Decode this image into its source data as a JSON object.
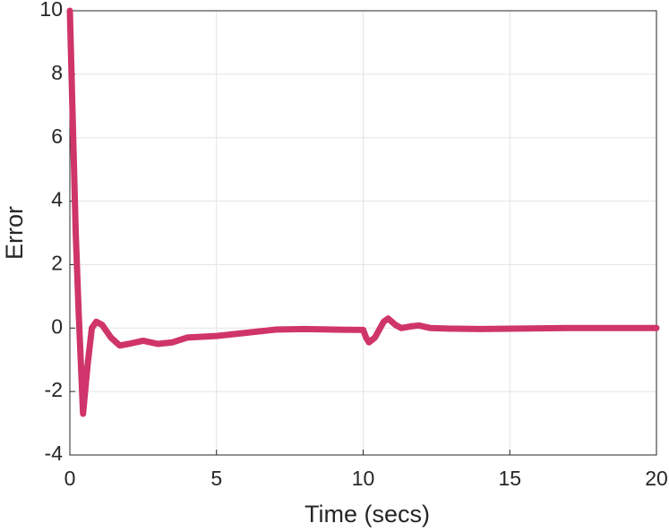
{
  "chart_data": {
    "type": "line",
    "xlabel": "Time (secs)",
    "ylabel": "Error",
    "x": [
      0,
      0.1,
      0.2,
      0.3,
      0.45,
      0.6,
      0.75,
      0.9,
      1.1,
      1.4,
      1.7,
      2.0,
      2.5,
      3.0,
      3.5,
      4.0,
      5.0,
      6.0,
      7.0,
      8.0,
      9.0,
      10.0,
      10.1,
      10.2,
      10.4,
      10.7,
      10.85,
      11.1,
      11.3,
      11.6,
      11.9,
      12.3,
      13.0,
      14.0,
      15.0,
      17.0,
      20.0
    ],
    "series": [
      {
        "color": "#cf356a",
        "values": [
          10,
          6.5,
          3,
          0.5,
          -2.7,
          -1.2,
          0.0,
          0.2,
          0.1,
          -0.3,
          -0.55,
          -0.5,
          -0.4,
          -0.5,
          -0.45,
          -0.3,
          -0.25,
          -0.15,
          -0.05,
          -0.03,
          -0.05,
          -0.06,
          -0.3,
          -0.45,
          -0.3,
          0.2,
          0.3,
          0.1,
          0.0,
          0.05,
          0.08,
          0.0,
          -0.02,
          -0.03,
          -0.02,
          0,
          0
        ]
      }
    ],
    "xlim": [
      0,
      20
    ],
    "xticks": [
      0,
      5,
      10,
      15,
      20
    ],
    "ylim": [
      -4,
      10
    ],
    "yticks": [
      -4,
      -2,
      0,
      2,
      4,
      6,
      8,
      10
    ],
    "grid": true
  }
}
